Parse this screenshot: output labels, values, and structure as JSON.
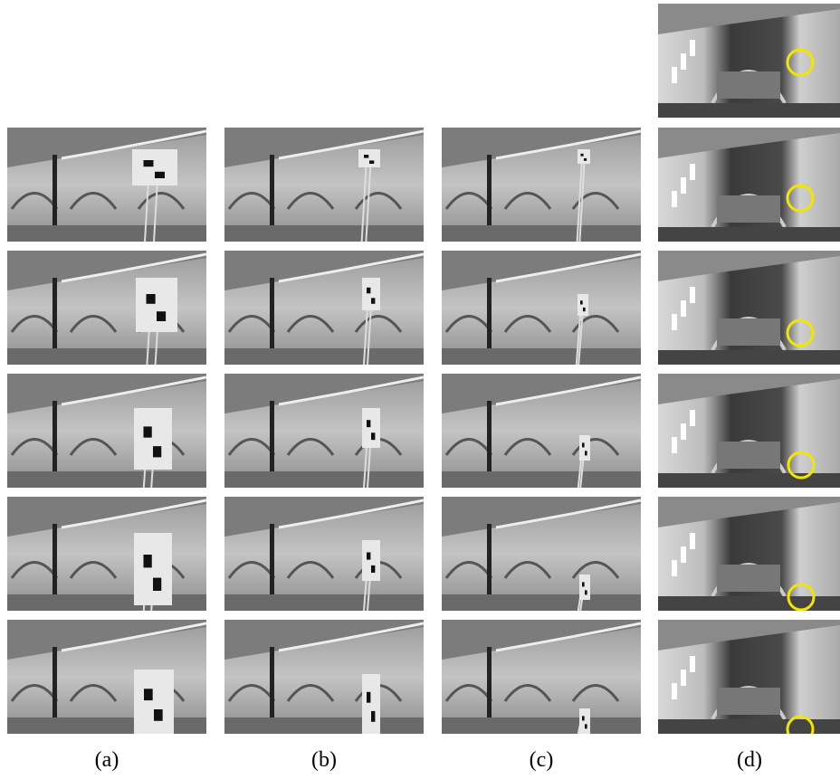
{
  "labels": [
    "(a)",
    "(b)",
    "(c)",
    "(d)"
  ]
}
